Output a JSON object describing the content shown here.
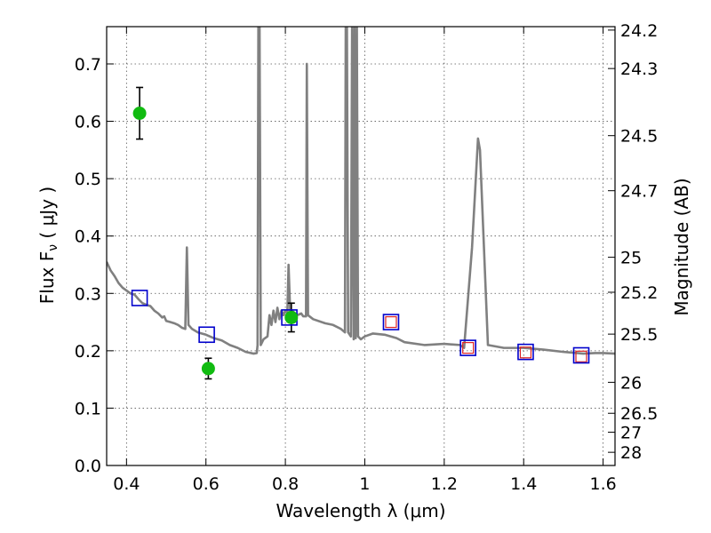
{
  "chart_data": {
    "type": "line",
    "xlabel": "Wavelength  λ (μm)",
    "ylabel": "Flux  F",
    "ylabel_sub": "ν",
    "ylabel_unit": " ( μJy )",
    "y2label": "Magnitude (AB)",
    "xlim": [
      0.35,
      1.63
    ],
    "ylim": [
      0.0,
      0.765
    ],
    "grid": true,
    "xticks": [
      0.4,
      0.6,
      0.8,
      1.0,
      1.2,
      1.4,
      1.6
    ],
    "xtick_labels": [
      "0.4",
      "0.6",
      "0.8",
      "1",
      "1.2",
      "1.4",
      "1.6"
    ],
    "yticks": [
      0.0,
      0.1,
      0.2,
      0.3,
      0.4,
      0.5,
      0.6,
      0.7
    ],
    "ytick_labels": [
      "0.0",
      "0.1",
      "0.2",
      "0.3",
      "0.4",
      "0.5",
      "0.6",
      "0.7"
    ],
    "y2ticks": [
      {
        "label": "24.2",
        "flux": 0.759
      },
      {
        "label": "24.3",
        "flux": 0.692
      },
      {
        "label": "24.5",
        "flux": 0.575
      },
      {
        "label": "24.7",
        "flux": 0.479
      },
      {
        "label": "25",
        "flux": 0.363
      },
      {
        "label": "25.2",
        "flux": 0.302
      },
      {
        "label": "25.5",
        "flux": 0.229
      },
      {
        "label": "26",
        "flux": 0.145
      },
      {
        "label": "26.5",
        "flux": 0.091
      },
      {
        "label": "27",
        "flux": 0.058
      },
      {
        "label": "28",
        "flux": 0.023
      }
    ],
    "colors": {
      "spectrum": "#808080",
      "observed": "#11bb11",
      "model_outer": "#0000cc",
      "model_inner": "#dd2222",
      "errorbar": "#000000"
    },
    "spectrum": [
      [
        0.35,
        0.355
      ],
      [
        0.36,
        0.34
      ],
      [
        0.37,
        0.33
      ],
      [
        0.38,
        0.318
      ],
      [
        0.39,
        0.31
      ],
      [
        0.4,
        0.305
      ],
      [
        0.41,
        0.3
      ],
      [
        0.42,
        0.298
      ],
      [
        0.43,
        0.29
      ],
      [
        0.44,
        0.283
      ],
      [
        0.45,
        0.28
      ],
      [
        0.46,
        0.278
      ],
      [
        0.47,
        0.27
      ],
      [
        0.48,
        0.265
      ],
      [
        0.49,
        0.258
      ],
      [
        0.495,
        0.26
      ],
      [
        0.5,
        0.252
      ],
      [
        0.51,
        0.25
      ],
      [
        0.52,
        0.248
      ],
      [
        0.53,
        0.245
      ],
      [
        0.54,
        0.24
      ],
      [
        0.548,
        0.238
      ],
      [
        0.552,
        0.38
      ],
      [
        0.556,
        0.245
      ],
      [
        0.565,
        0.238
      ],
      [
        0.58,
        0.232
      ],
      [
        0.6,
        0.228
      ],
      [
        0.62,
        0.222
      ],
      [
        0.64,
        0.218
      ],
      [
        0.66,
        0.21
      ],
      [
        0.68,
        0.205
      ],
      [
        0.7,
        0.198
      ],
      [
        0.72,
        0.195
      ],
      [
        0.728,
        0.196
      ],
      [
        0.73,
        0.21
      ],
      [
        0.732,
        0.765
      ],
      [
        0.735,
        0.765
      ],
      [
        0.738,
        0.21
      ],
      [
        0.745,
        0.22
      ],
      [
        0.755,
        0.225
      ],
      [
        0.76,
        0.262
      ],
      [
        0.765,
        0.245
      ],
      [
        0.77,
        0.27
      ],
      [
        0.775,
        0.25
      ],
      [
        0.78,
        0.275
      ],
      [
        0.785,
        0.255
      ],
      [
        0.79,
        0.27
      ],
      [
        0.795,
        0.262
      ],
      [
        0.8,
        0.27
      ],
      [
        0.805,
        0.265
      ],
      [
        0.808,
        0.35
      ],
      [
        0.812,
        0.27
      ],
      [
        0.82,
        0.268
      ],
      [
        0.83,
        0.262
      ],
      [
        0.84,
        0.265
      ],
      [
        0.845,
        0.26
      ],
      [
        0.852,
        0.26
      ],
      [
        0.854,
        0.7
      ],
      [
        0.857,
        0.262
      ],
      [
        0.87,
        0.255
      ],
      [
        0.9,
        0.248
      ],
      [
        0.92,
        0.245
      ],
      [
        0.94,
        0.238
      ],
      [
        0.95,
        0.232
      ],
      [
        0.952,
        0.765
      ],
      [
        0.955,
        0.765
      ],
      [
        0.958,
        0.232
      ],
      [
        0.965,
        0.225
      ],
      [
        0.968,
        0.765
      ],
      [
        0.972,
        0.22
      ],
      [
        0.974,
        0.765
      ],
      [
        0.977,
        0.222
      ],
      [
        0.98,
        0.765
      ],
      [
        0.983,
        0.225
      ],
      [
        0.99,
        0.22
      ],
      [
        1.0,
        0.225
      ],
      [
        1.02,
        0.23
      ],
      [
        1.05,
        0.228
      ],
      [
        1.08,
        0.222
      ],
      [
        1.1,
        0.215
      ],
      [
        1.15,
        0.21
      ],
      [
        1.2,
        0.212
      ],
      [
        1.24,
        0.21
      ],
      [
        1.25,
        0.205
      ],
      [
        1.27,
        0.38
      ],
      [
        1.285,
        0.57
      ],
      [
        1.29,
        0.55
      ],
      [
        1.31,
        0.21
      ],
      [
        1.35,
        0.205
      ],
      [
        1.4,
        0.205
      ],
      [
        1.45,
        0.202
      ],
      [
        1.5,
        0.198
      ],
      [
        1.55,
        0.195
      ],
      [
        1.58,
        0.196
      ],
      [
        1.6,
        0.196
      ],
      [
        1.63,
        0.195
      ]
    ],
    "model_points": [
      {
        "x": 0.433,
        "y": 0.292
      },
      {
        "x": 0.602,
        "y": 0.228
      },
      {
        "x": 0.81,
        "y": 0.258
      },
      {
        "x": 1.066,
        "y": 0.25
      },
      {
        "x": 1.26,
        "y": 0.205
      },
      {
        "x": 1.405,
        "y": 0.198
      },
      {
        "x": 1.545,
        "y": 0.192
      }
    ],
    "model_inner_points": [
      {
        "x": 1.066,
        "y": 0.25
      },
      {
        "x": 1.26,
        "y": 0.205
      },
      {
        "x": 1.405,
        "y": 0.197
      },
      {
        "x": 1.545,
        "y": 0.19
      }
    ],
    "observed": [
      {
        "x": 0.433,
        "y": 0.614,
        "err": 0.045
      },
      {
        "x": 0.606,
        "y": 0.169,
        "err": 0.018
      },
      {
        "x": 0.815,
        "y": 0.258,
        "err": 0.025
      }
    ]
  }
}
